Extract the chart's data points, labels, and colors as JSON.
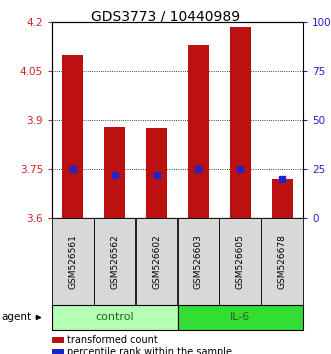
{
  "title": "GDS3773 / 10440989",
  "samples": [
    "GSM526561",
    "GSM526562",
    "GSM526602",
    "GSM526603",
    "GSM526605",
    "GSM526678"
  ],
  "transformed_counts": [
    4.1,
    3.88,
    3.875,
    4.13,
    4.185,
    3.72
  ],
  "percentile_ranks": [
    25,
    22,
    22,
    25,
    25,
    20
  ],
  "groups": [
    "control",
    "control",
    "control",
    "IL-6",
    "IL-6",
    "IL-6"
  ],
  "ylim_left": [
    3.6,
    4.2
  ],
  "ylim_right": [
    0,
    100
  ],
  "left_ticks": [
    3.6,
    3.75,
    3.9,
    4.05,
    4.2
  ],
  "right_ticks": [
    0,
    25,
    50,
    75,
    100
  ],
  "right_tick_labels": [
    "0",
    "25",
    "50",
    "75",
    "100%"
  ],
  "bar_color": "#bb1111",
  "dot_color": "#2222cc",
  "control_color": "#b3ffb3",
  "il6_color": "#33dd33",
  "group_label_color": "#226622",
  "agent_label": "agent",
  "legend_bar_label": "transformed count",
  "legend_dot_label": "percentile rank within the sample",
  "title_fontsize": 10,
  "tick_fontsize": 7.5,
  "sample_fontsize": 6.5
}
